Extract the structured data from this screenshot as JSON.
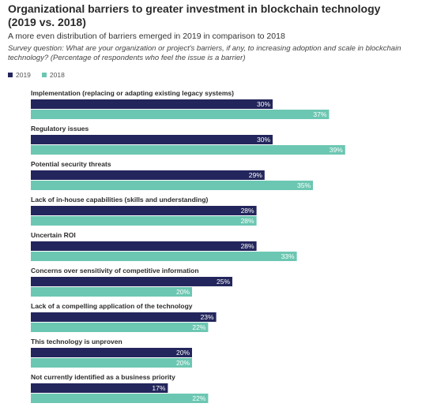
{
  "title": "Organizational barriers to greater investment in blockchain technology (2019 vs. 2018)",
  "subtitle": "A more even distribution of barriers emerged in 2019 in comparison to 2018",
  "question": "Survey question: What are your organization or project's barriers, if any, to increasing adoption and scale in blockchain technology? (Percentage of respondents who feel the issue is a barrier)",
  "colors": {
    "2019": "#23265c",
    "2018": "#6cc7b2"
  },
  "chart_data": {
    "type": "bar",
    "orientation": "horizontal",
    "title": "Organizational barriers to greater investment in blockchain technology (2019 vs. 2018)",
    "legend_position": "top-left",
    "grid": false,
    "xlim": [
      0,
      50
    ],
    "categories": [
      "Implementation (replacing or adapting existing legacy systems)",
      "Regulatory issues",
      "Potential security threats",
      "Lack of in-house capabilities (skills and understanding)",
      "Uncertain ROI",
      "Concerns over sensitivity of competitive information",
      "Lack of a compelling application of the technology",
      "This technology is unproven",
      "Not currently identified as a business priority"
    ],
    "series": [
      {
        "name": "2019",
        "values": [
          30,
          30,
          29,
          28,
          28,
          25,
          23,
          20,
          17
        ],
        "labels": [
          "30%",
          "30%",
          "29%",
          "28%",
          "28%",
          "25%",
          "23%",
          "20%",
          "17%"
        ]
      },
      {
        "name": "2018",
        "values": [
          37,
          39,
          35,
          28,
          33,
          20,
          22,
          20,
          22
        ],
        "labels": [
          "37%",
          "39%",
          "35%",
          "28%",
          "33%",
          "20%",
          "22%",
          "20%",
          "22%"
        ]
      }
    ]
  }
}
